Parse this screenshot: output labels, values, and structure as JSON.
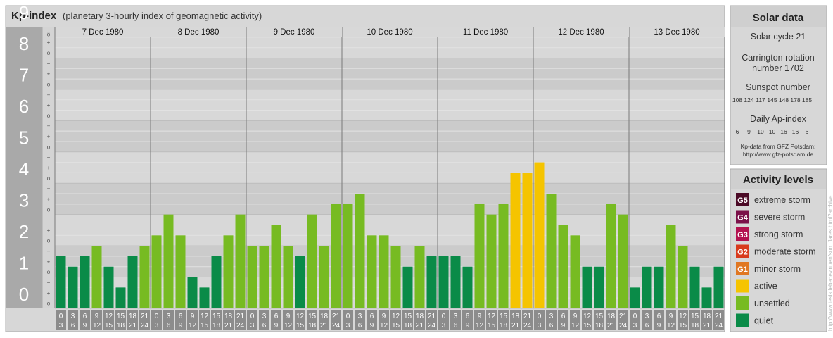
{
  "header": {
    "title": "Kp-index",
    "subtitle": "(planetary 3-hourly index of geomagnetic activity)"
  },
  "chart_data": {
    "type": "bar",
    "y_range": [
      0,
      9
    ],
    "y_major_ticks": [
      "0",
      "1",
      "2",
      "3",
      "4",
      "5",
      "6",
      "7",
      "8",
      "9"
    ],
    "y_minor_ticks": [
      "o",
      "+",
      "−"
    ],
    "days": [
      "7 Dec 1980",
      "8 Dec 1980",
      "9 Dec 1980",
      "10 Dec 1980",
      "11 Dec 1980",
      "12 Dec 1980",
      "13 Dec 1980"
    ],
    "intervals": [
      {
        "top": "0",
        "bottom": "3"
      },
      {
        "top": "3",
        "bottom": "6"
      },
      {
        "top": "6",
        "bottom": "9"
      },
      {
        "top": "9",
        "bottom": "12"
      },
      {
        "top": "12",
        "bottom": "15"
      },
      {
        "top": "15",
        "bottom": "18"
      },
      {
        "top": "18",
        "bottom": "21"
      },
      {
        "top": "21",
        "bottom": "24"
      }
    ],
    "values": [
      [
        1.667,
        1.333,
        1.667,
        2.0,
        1.333,
        0.667,
        1.667,
        2.0
      ],
      [
        2.333,
        3.0,
        2.333,
        1.0,
        0.667,
        1.667,
        2.333,
        3.0
      ],
      [
        2.0,
        2.0,
        2.667,
        2.0,
        1.667,
        3.0,
        2.0,
        3.333
      ],
      [
        3.333,
        3.667,
        2.333,
        2.333,
        2.0,
        1.333,
        2.0,
        1.667
      ],
      [
        1.667,
        1.667,
        1.333,
        3.333,
        3.0,
        3.333,
        4.333,
        4.333
      ],
      [
        4.667,
        3.667,
        2.667,
        2.333,
        1.333,
        1.333,
        3.333,
        3.0
      ],
      [
        0.667,
        1.333,
        1.333,
        2.667,
        2.0,
        1.333,
        0.667,
        1.333
      ]
    ]
  },
  "solar": {
    "title": "Solar data",
    "cycle": "Solar cycle 21",
    "carrington": "Carrington rotation number 1702",
    "sunspot_title": "Sunspot number",
    "sunspot_values": [
      "108",
      "124",
      "117",
      "145",
      "148",
      "178",
      "185"
    ],
    "ap_title": "Daily Ap-index",
    "ap_values": [
      "6",
      "9",
      "10",
      "10",
      "16",
      "16",
      "6"
    ],
    "source_line1": "Kp-data from GFZ Potsdam:",
    "source_line2": "http://www.gfz-potsdam.de"
  },
  "activity": {
    "title": "Activity levels",
    "levels": [
      {
        "badge": "G5",
        "label": "extreme storm",
        "color": "#4b0a26"
      },
      {
        "badge": "G4",
        "label": "severe storm",
        "color": "#7b1049"
      },
      {
        "badge": "G3",
        "label": "strong storm",
        "color": "#b3124f"
      },
      {
        "badge": "G2",
        "label": "moderate storm",
        "color": "#d83a1c"
      },
      {
        "badge": "G1",
        "label": "minor storm",
        "color": "#e07722"
      },
      {
        "badge": "",
        "label": "active",
        "color": "#f5c400"
      },
      {
        "badge": "",
        "label": "unsettled",
        "color": "#77bb22"
      },
      {
        "badge": "",
        "label": "quiet",
        "color": "#0a8b48"
      }
    ]
  },
  "credit": "http://www.tesis.lebedev.ru/en/sun_flares.html?archive"
}
